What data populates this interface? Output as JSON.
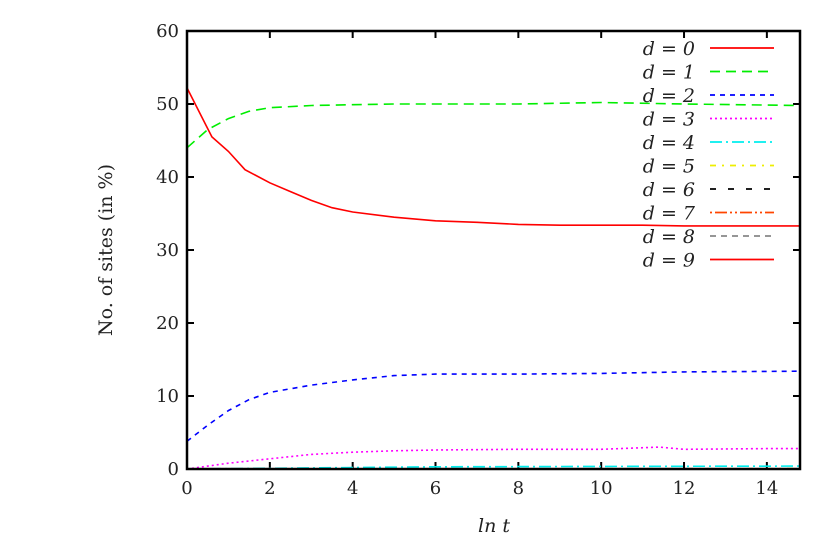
{
  "chart_data": {
    "type": "line",
    "xlabel": "ln t",
    "ylabel": "No. of sites (in %)",
    "xlim": [
      0,
      14.8
    ],
    "ylim": [
      0,
      60
    ],
    "xticks": [
      0,
      2,
      4,
      6,
      8,
      10,
      12,
      14
    ],
    "yticks": [
      0,
      10,
      20,
      30,
      40,
      50,
      60
    ],
    "grid": false,
    "legend_position": "top-right",
    "series": [
      {
        "name": "d = 0",
        "color": "#ff0000",
        "dash": "",
        "points": [
          [
            0,
            52.2
          ],
          [
            0.6,
            45.5
          ],
          [
            1,
            43.5
          ],
          [
            1.4,
            41
          ],
          [
            2,
            39.2
          ],
          [
            2.5,
            38
          ],
          [
            3,
            36.8
          ],
          [
            3.5,
            35.8
          ],
          [
            4,
            35.2
          ],
          [
            5,
            34.5
          ],
          [
            6,
            34
          ],
          [
            7,
            33.8
          ],
          [
            8,
            33.5
          ],
          [
            9,
            33.4
          ],
          [
            10,
            33.4
          ],
          [
            11,
            33.4
          ],
          [
            12,
            33.3
          ],
          [
            13,
            33.3
          ],
          [
            14.8,
            33.3
          ]
        ]
      },
      {
        "name": "d = 1",
        "color": "#00ee00",
        "dash": "10,6",
        "points": [
          [
            0,
            44
          ],
          [
            0.5,
            46.5
          ],
          [
            1,
            48
          ],
          [
            1.5,
            49
          ],
          [
            2,
            49.5
          ],
          [
            3,
            49.8
          ],
          [
            4,
            49.9
          ],
          [
            5,
            50
          ],
          [
            6,
            50
          ],
          [
            8,
            50
          ],
          [
            10,
            50.2
          ],
          [
            12,
            50
          ],
          [
            14.8,
            49.8
          ]
        ]
      },
      {
        "name": "d = 2",
        "color": "#0000ff",
        "dash": "5,5",
        "points": [
          [
            0,
            3.8
          ],
          [
            0.5,
            6
          ],
          [
            1,
            8
          ],
          [
            1.5,
            9.5
          ],
          [
            2,
            10.5
          ],
          [
            3,
            11.5
          ],
          [
            4,
            12.2
          ],
          [
            5,
            12.8
          ],
          [
            6,
            13
          ],
          [
            8,
            13
          ],
          [
            10,
            13.1
          ],
          [
            12,
            13.3
          ],
          [
            14.8,
            13.4
          ]
        ]
      },
      {
        "name": "d = 3",
        "color": "#ff00ff",
        "dash": "2,3",
        "points": [
          [
            0,
            0
          ],
          [
            1,
            0.8
          ],
          [
            2,
            1.4
          ],
          [
            3,
            2
          ],
          [
            4,
            2.3
          ],
          [
            5,
            2.5
          ],
          [
            6,
            2.6
          ],
          [
            8,
            2.7
          ],
          [
            10,
            2.7
          ],
          [
            11.4,
            3
          ],
          [
            12,
            2.7
          ],
          [
            14,
            2.8
          ],
          [
            14.8,
            2.8
          ]
        ]
      },
      {
        "name": "d = 4",
        "color": "#00eeee",
        "dash": "12,4,2,4",
        "points": [
          [
            0,
            0
          ],
          [
            2,
            0.1
          ],
          [
            4,
            0.2
          ],
          [
            6,
            0.3
          ],
          [
            10,
            0.35
          ],
          [
            14.8,
            0.4
          ]
        ]
      },
      {
        "name": "d = 5",
        "color": "#eeee00",
        "dash": "6,6,2,6",
        "points": [
          [
            0,
            0
          ],
          [
            14.8,
            0.05
          ]
        ]
      },
      {
        "name": "d = 6",
        "color": "#000000",
        "dash": "6,12",
        "points": [
          [
            0,
            0
          ],
          [
            14.8,
            0.02
          ]
        ]
      },
      {
        "name": "d = 7",
        "color": "#ff4500",
        "dash": "2,3,12,3,2,3",
        "points": [
          [
            0,
            0
          ],
          [
            14.8,
            0.01
          ]
        ]
      },
      {
        "name": "d = 8",
        "color": "#888888",
        "dash": "6,5",
        "points": [
          [
            0,
            0
          ],
          [
            14.8,
            0.01
          ]
        ]
      },
      {
        "name": "d = 9",
        "color": "#ff0000",
        "dash": "",
        "points": [
          [
            0,
            0
          ],
          [
            14.8,
            0.01
          ]
        ]
      }
    ]
  }
}
